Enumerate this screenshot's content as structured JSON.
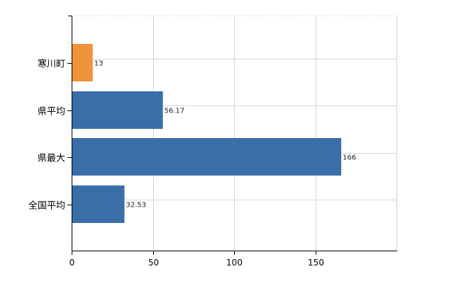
{
  "chart_data": {
    "type": "bar",
    "orientation": "horizontal",
    "categories": [
      "寒川町",
      "県平均",
      "県最大",
      "全国平均"
    ],
    "values": [
      13,
      56.17,
      166,
      32.53
    ],
    "data_labels": [
      "13",
      "56.17",
      "166",
      "32.53"
    ],
    "bar_colors": [
      "#f0923a",
      "#3a6ea8",
      "#3a6ea8",
      "#3a6ea8"
    ],
    "title": "",
    "xlabel": "",
    "ylabel": "",
    "xlim": [
      0,
      200
    ],
    "xticks": [
      0,
      50,
      100,
      150
    ],
    "xtick_labels": [
      "0",
      "50",
      "100",
      "150"
    ],
    "grid": true,
    "legend": "none"
  }
}
